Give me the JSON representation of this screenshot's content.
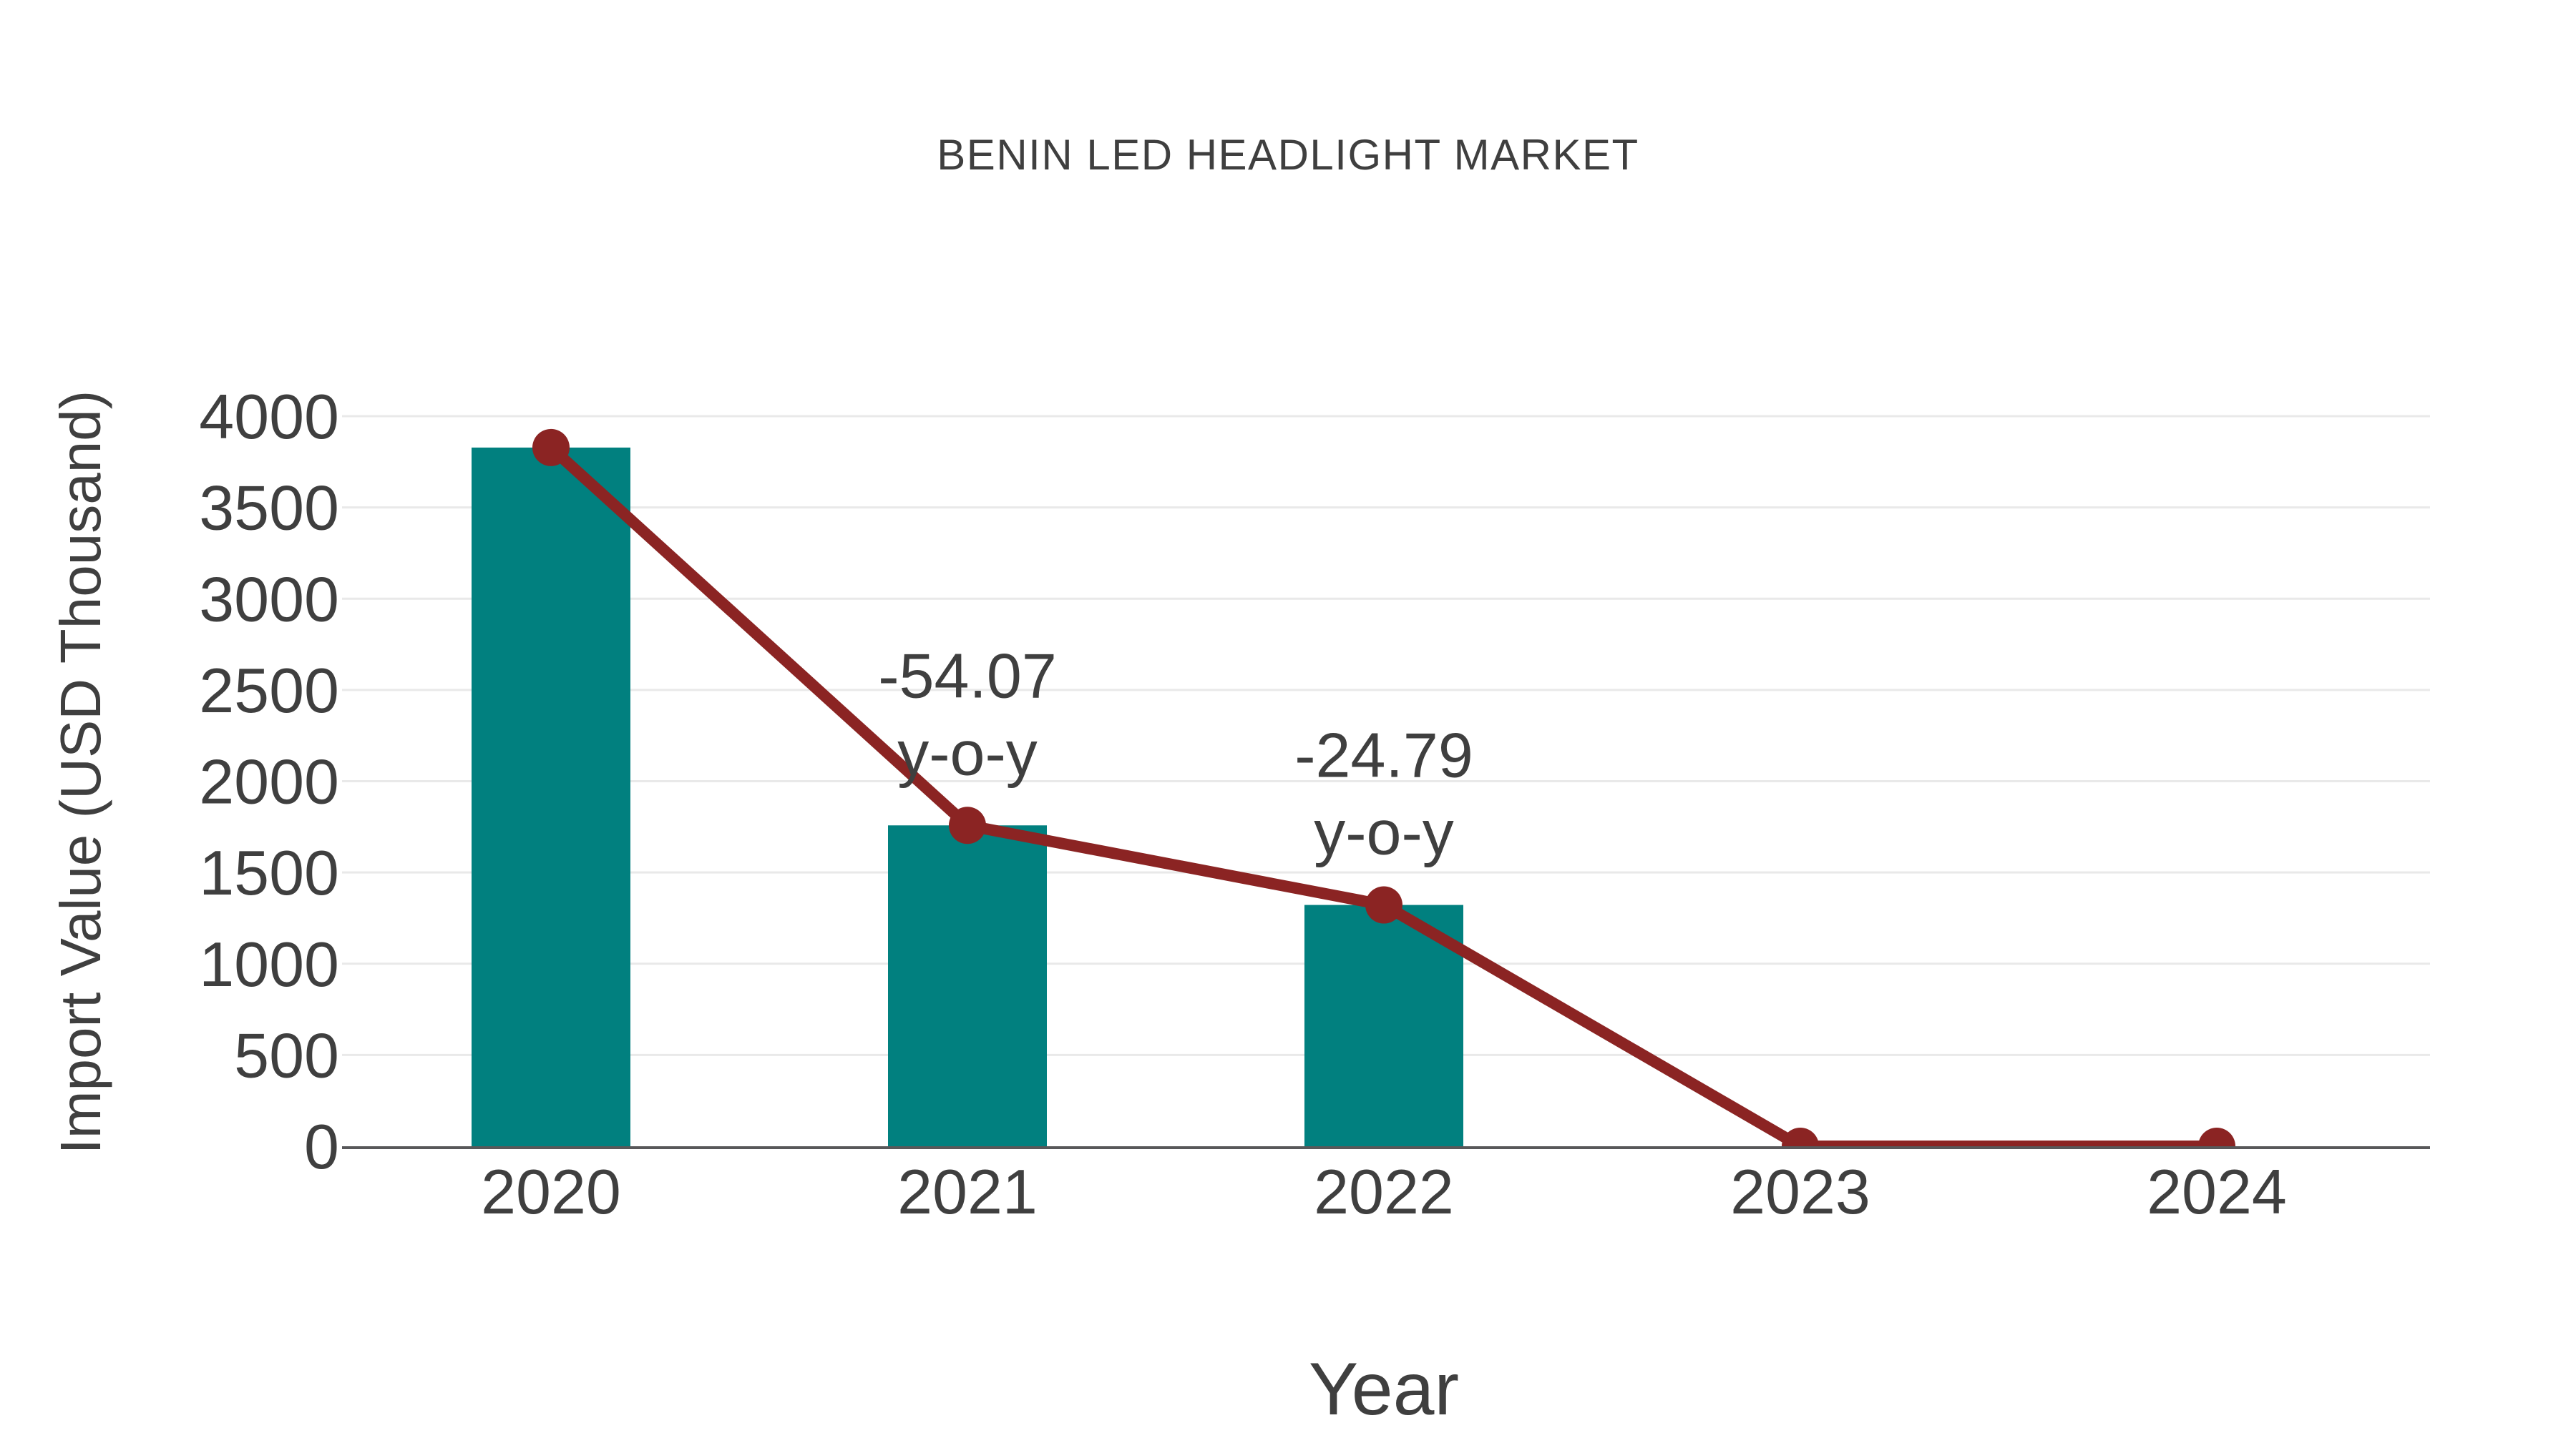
{
  "page": {
    "background": "#FFFFFF"
  },
  "chart_data": {
    "type": "bar",
    "title": "BENIN LED HEADLIGHT MARKET",
    "xlabel": "Year",
    "ylabel": "Import Value (USD Thousand)",
    "categories": [
      "2020",
      "2021",
      "2022",
      "2023",
      "2024"
    ],
    "series": [
      {
        "name": "import-value-bars",
        "type": "bar",
        "color": "#01807F",
        "values": [
          3828,
          1758,
          1322,
          0,
          0
        ]
      },
      {
        "name": "import-value-trend-line",
        "type": "line",
        "color": "#8B2423",
        "values": [
          3828,
          1758,
          1322,
          0,
          0
        ]
      }
    ],
    "annotations": [
      {
        "category_index": 1,
        "lines": [
          "-54.07",
          "y-o-y"
        ]
      },
      {
        "category_index": 2,
        "lines": [
          "-24.79",
          "y-o-y"
        ]
      }
    ],
    "ylim": [
      0,
      4000
    ],
    "ytick_step": 500,
    "yticks": [
      0,
      500,
      1000,
      1500,
      2000,
      2500,
      3000,
      3500,
      4000
    ],
    "grid": "horizontal",
    "legend": false,
    "colors": {
      "text": "#3F3F3F",
      "gridline": "#E9E9E9",
      "axis_line": "#58585A",
      "bar": "#01807F",
      "line": "#8B2423"
    }
  }
}
